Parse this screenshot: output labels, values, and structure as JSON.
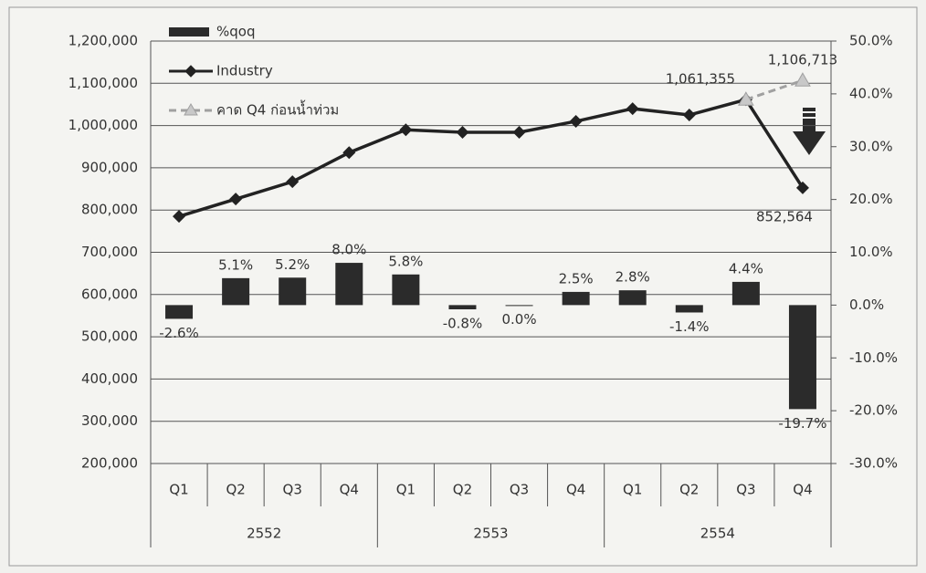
{
  "chart_data": {
    "type": "bar-line",
    "categories": [
      "Q1",
      "Q2",
      "Q3",
      "Q4",
      "Q1",
      "Q2",
      "Q3",
      "Q4",
      "Q1",
      "Q2",
      "Q3",
      "Q4"
    ],
    "groups": [
      "2552",
      "2553",
      "2554"
    ],
    "ylim": [
      200000,
      1200000
    ],
    "yticks": [
      {
        "value": 200000,
        "label": "200,000"
      },
      {
        "value": 300000,
        "label": "300,000"
      },
      {
        "value": 400000,
        "label": "400,000"
      },
      {
        "value": 500000,
        "label": "500,000"
      },
      {
        "value": 600000,
        "label": "600,000"
      },
      {
        "value": 700000,
        "label": "700,000"
      },
      {
        "value": 800000,
        "label": "800,000"
      },
      {
        "value": 900000,
        "label": "900,000"
      },
      {
        "value": 1000000,
        "label": "1,000,000"
      },
      {
        "value": 1100000,
        "label": "1,100,000"
      },
      {
        "value": 1200000,
        "label": "1,200,000"
      }
    ],
    "y2lim": [
      -30,
      50
    ],
    "y2ticks": [
      {
        "value": -30,
        "label": "-30.0%"
      },
      {
        "value": -20,
        "label": "-20.0%"
      },
      {
        "value": -10,
        "label": "-10.0%"
      },
      {
        "value": 0,
        "label": "0.0%"
      },
      {
        "value": 10,
        "label": "10.0%"
      },
      {
        "value": 20,
        "label": "20.0%"
      },
      {
        "value": 30,
        "label": "30.0%"
      },
      {
        "value": 40,
        "label": "40.0%"
      },
      {
        "value": 50,
        "label": "50.0%"
      }
    ],
    "grid": true,
    "series": [
      {
        "name": "%qoq",
        "kind": "bar",
        "axis": "y2",
        "color": "#2b2b2b",
        "values": [
          -2.6,
          5.1,
          5.2,
          8.0,
          5.8,
          -0.8,
          0.0,
          2.5,
          2.8,
          -1.4,
          4.4,
          -19.7
        ],
        "value_labels": [
          "-2.6%",
          "5.1%",
          "5.2%",
          "8.0%",
          "5.8%",
          "-0.8%",
          "0.0%",
          "2.5%",
          "2.8%",
          "-1.4%",
          "4.4%",
          "-19.7%"
        ]
      },
      {
        "name": "Industry",
        "kind": "line",
        "color": "#222222",
        "values": [
          785000,
          826000,
          867000,
          936000,
          990000,
          984000,
          984000,
          1010000,
          1040000,
          1025000,
          1061355,
          852564
        ],
        "value_labels": [
          null,
          null,
          null,
          null,
          null,
          null,
          null,
          null,
          null,
          null,
          "1,061,355",
          "852,564"
        ]
      },
      {
        "name": "คาด Q4 ก่อนน้ำท่วม",
        "kind": "dashed",
        "color": "#a0a0a0",
        "values": [
          null,
          null,
          null,
          null,
          null,
          null,
          null,
          null,
          null,
          null,
          1061355,
          1106713
        ],
        "value_labels": [
          null,
          null,
          null,
          null,
          null,
          null,
          null,
          null,
          null,
          null,
          null,
          "1,106,713"
        ]
      }
    ]
  }
}
